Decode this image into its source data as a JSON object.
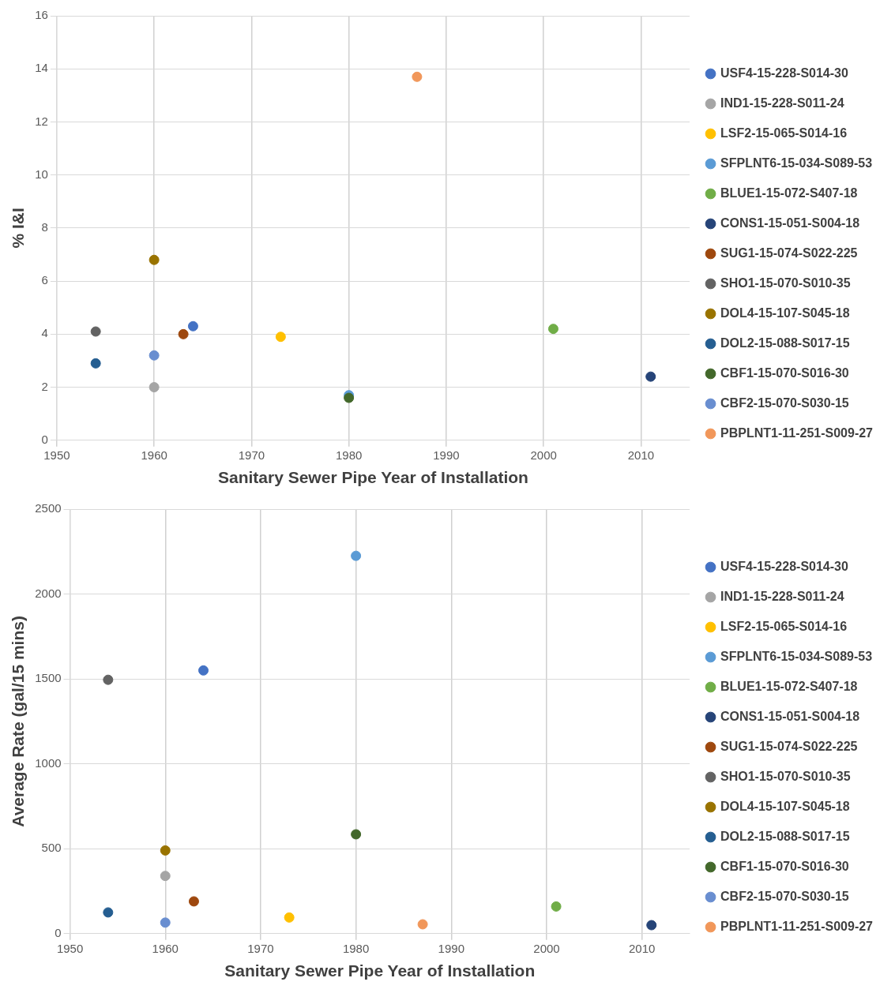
{
  "chart_data": [
    {
      "type": "scatter",
      "xlabel": "Sanitary Sewer Pipe Year of Installation",
      "ylabel": "% I&I",
      "xlim": [
        1950,
        2015
      ],
      "xticks": [
        1950,
        1960,
        1970,
        1980,
        1990,
        2000,
        2010
      ],
      "ylim": [
        0,
        16
      ],
      "yticks": [
        0,
        2,
        4,
        6,
        8,
        10,
        12,
        14,
        16
      ],
      "grid": true,
      "legend": "right",
      "marker": "circle",
      "series": [
        {
          "name": "USF4-15-228-S014-30",
          "color": "#4472c4",
          "x": [
            1964
          ],
          "values": [
            4.3
          ]
        },
        {
          "name": "IND1-15-228-S011-24",
          "color": "#a5a5a5",
          "x": [
            1960
          ],
          "values": [
            2.0
          ]
        },
        {
          "name": "LSF2-15-065-S014-16",
          "color": "#ffc000",
          "x": [
            1973
          ],
          "values": [
            3.9
          ]
        },
        {
          "name": "SFPLNT6-15-034-S089-53",
          "color": "#5b9bd5",
          "x": [
            1980
          ],
          "values": [
            1.7
          ]
        },
        {
          "name": "BLUE1-15-072-S407-18",
          "color": "#70ad47",
          "x": [
            2001
          ],
          "values": [
            4.2
          ]
        },
        {
          "name": "CONS1-15-051-S004-18",
          "color": "#264478",
          "x": [
            2011
          ],
          "values": [
            2.4
          ]
        },
        {
          "name": "SUG1-15-074-S022-225",
          "color": "#9e480e",
          "x": [
            1963
          ],
          "values": [
            4.0
          ]
        },
        {
          "name": "SHO1-15-070-S010-35",
          "color": "#636363",
          "x": [
            1954
          ],
          "values": [
            4.1
          ]
        },
        {
          "name": "DOL4-15-107-S045-18",
          "color": "#997300",
          "x": [
            1960
          ],
          "values": [
            6.8
          ]
        },
        {
          "name": "DOL2-15-088-S017-15",
          "color": "#255e91",
          "x": [
            1954
          ],
          "values": [
            2.9
          ]
        },
        {
          "name": "CBF1-15-070-S016-30",
          "color": "#43682b",
          "x": [
            1980
          ],
          "values": [
            1.6
          ]
        },
        {
          "name": "CBF2-15-070-S030-15",
          "color": "#698ed0",
          "x": [
            1960
          ],
          "values": [
            3.2
          ]
        },
        {
          "name": "PBPLNT1-11-251-S009-27",
          "color": "#f1975a",
          "x": [
            1987
          ],
          "values": [
            13.7
          ]
        }
      ]
    },
    {
      "type": "scatter",
      "xlabel": "Sanitary Sewer Pipe Year of Installation",
      "ylabel": "Average Rate (gal/15 mins)",
      "xlim": [
        1950,
        2015
      ],
      "xticks": [
        1950,
        1960,
        1970,
        1980,
        1990,
        2000,
        2010
      ],
      "ylim": [
        0,
        2500
      ],
      "yticks": [
        0,
        500,
        1000,
        1500,
        2000,
        2500
      ],
      "grid": true,
      "legend": "right",
      "marker": "circle",
      "series": [
        {
          "name": "USF4-15-228-S014-30",
          "color": "#4472c4",
          "x": [
            1964
          ],
          "values": [
            1550
          ]
        },
        {
          "name": "IND1-15-228-S011-24",
          "color": "#a5a5a5",
          "x": [
            1960
          ],
          "values": [
            340
          ]
        },
        {
          "name": "LSF2-15-065-S014-16",
          "color": "#ffc000",
          "x": [
            1973
          ],
          "values": [
            95
          ]
        },
        {
          "name": "SFPLNT6-15-034-S089-53",
          "color": "#5b9bd5",
          "x": [
            1980
          ],
          "values": [
            2225
          ]
        },
        {
          "name": "BLUE1-15-072-S407-18",
          "color": "#70ad47",
          "x": [
            2001
          ],
          "values": [
            160
          ]
        },
        {
          "name": "CONS1-15-051-S004-18",
          "color": "#264478",
          "x": [
            2011
          ],
          "values": [
            50
          ]
        },
        {
          "name": "SUG1-15-074-S022-225",
          "color": "#9e480e",
          "x": [
            1963
          ],
          "values": [
            190
          ]
        },
        {
          "name": "SHO1-15-070-S010-35",
          "color": "#636363",
          "x": [
            1954
          ],
          "values": [
            1495
          ]
        },
        {
          "name": "DOL4-15-107-S045-18",
          "color": "#997300",
          "x": [
            1960
          ],
          "values": [
            490
          ]
        },
        {
          "name": "DOL2-15-088-S017-15",
          "color": "#255e91",
          "x": [
            1954
          ],
          "values": [
            125
          ]
        },
        {
          "name": "CBF1-15-070-S016-30",
          "color": "#43682b",
          "x": [
            1980
          ],
          "values": [
            585
          ]
        },
        {
          "name": "CBF2-15-070-S030-15",
          "color": "#698ed0",
          "x": [
            1960
          ],
          "values": [
            65
          ]
        },
        {
          "name": "PBPLNT1-11-251-S009-27",
          "color": "#f1975a",
          "x": [
            1987
          ],
          "values": [
            55
          ]
        }
      ]
    }
  ]
}
